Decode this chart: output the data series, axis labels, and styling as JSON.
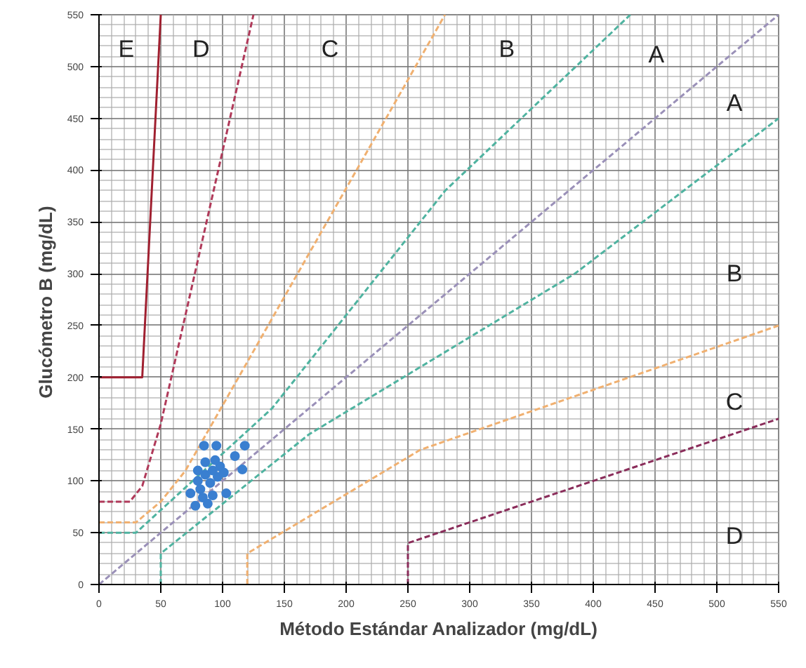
{
  "chart_data": {
    "type": "line",
    "xlabel": "Método Estándar Analizador (mg/dL)",
    "ylabel": "Glucómetro B  (mg/dL)",
    "xlim": [
      0,
      550
    ],
    "ylim": [
      0,
      550
    ],
    "xticks": [
      0,
      50,
      100,
      150,
      200,
      250,
      300,
      350,
      400,
      450,
      500,
      550
    ],
    "yticks": [
      0,
      50,
      100,
      150,
      200,
      250,
      300,
      350,
      400,
      450,
      500,
      550
    ],
    "grid": true,
    "series": [
      {
        "color": "#9a90b8",
        "line_style": "dashed",
        "x": [
          0,
          550
        ],
        "values": [
          0,
          550
        ]
      },
      {
        "color": "#4fb3a0",
        "line_style": "dashed",
        "x": [
          0,
          30,
          140,
          280,
          430
        ],
        "values": [
          50,
          50,
          170,
          380,
          550
        ]
      },
      {
        "color": "#4fb3a0",
        "line_style": "dashed",
        "x": [
          50,
          50,
          170,
          385,
          550
        ],
        "values": [
          0,
          30,
          145,
          300,
          450
        ]
      },
      {
        "color": "#f0b070",
        "line_style": "dashed",
        "x": [
          0,
          30,
          50,
          70,
          280
        ],
        "values": [
          60,
          60,
          80,
          110,
          550
        ]
      },
      {
        "color": "#f0b070",
        "line_style": "dashed",
        "x": [
          120,
          120,
          260,
          550
        ],
        "values": [
          0,
          30,
          130,
          250
        ]
      },
      {
        "color": "#b03a5a",
        "line_style": "dashed",
        "x": [
          0,
          25,
          35,
          50,
          125
        ],
        "values": [
          80,
          80,
          95,
          155,
          550
        ]
      },
      {
        "color": "#8a2c5a",
        "line_style": "dashed",
        "x": [
          250,
          250,
          550
        ],
        "values": [
          0,
          40,
          160
        ]
      },
      {
        "color": "#a02030",
        "line_style": "solid",
        "x": [
          0,
          35,
          50
        ],
        "values": [
          200,
          200,
          550
        ]
      },
      {
        "type": "scatter",
        "marker": "circle",
        "color": "#3a7fd0",
        "x": [
          85,
          95,
          118,
          110,
          116,
          103,
          74,
          78,
          80,
          86,
          92,
          98,
          82,
          90,
          96,
          84,
          92,
          86,
          94,
          101,
          80,
          88
        ],
        "values": [
          134,
          134,
          134,
          124,
          111,
          88,
          88,
          76,
          100,
          106,
          110,
          114,
          92,
          98,
          104,
          84,
          86,
          118,
          120,
          108,
          110,
          78
        ]
      }
    ],
    "annotations": [
      "E",
      "D",
      "C",
      "B",
      "A",
      "A",
      "B",
      "C",
      "D"
    ]
  }
}
